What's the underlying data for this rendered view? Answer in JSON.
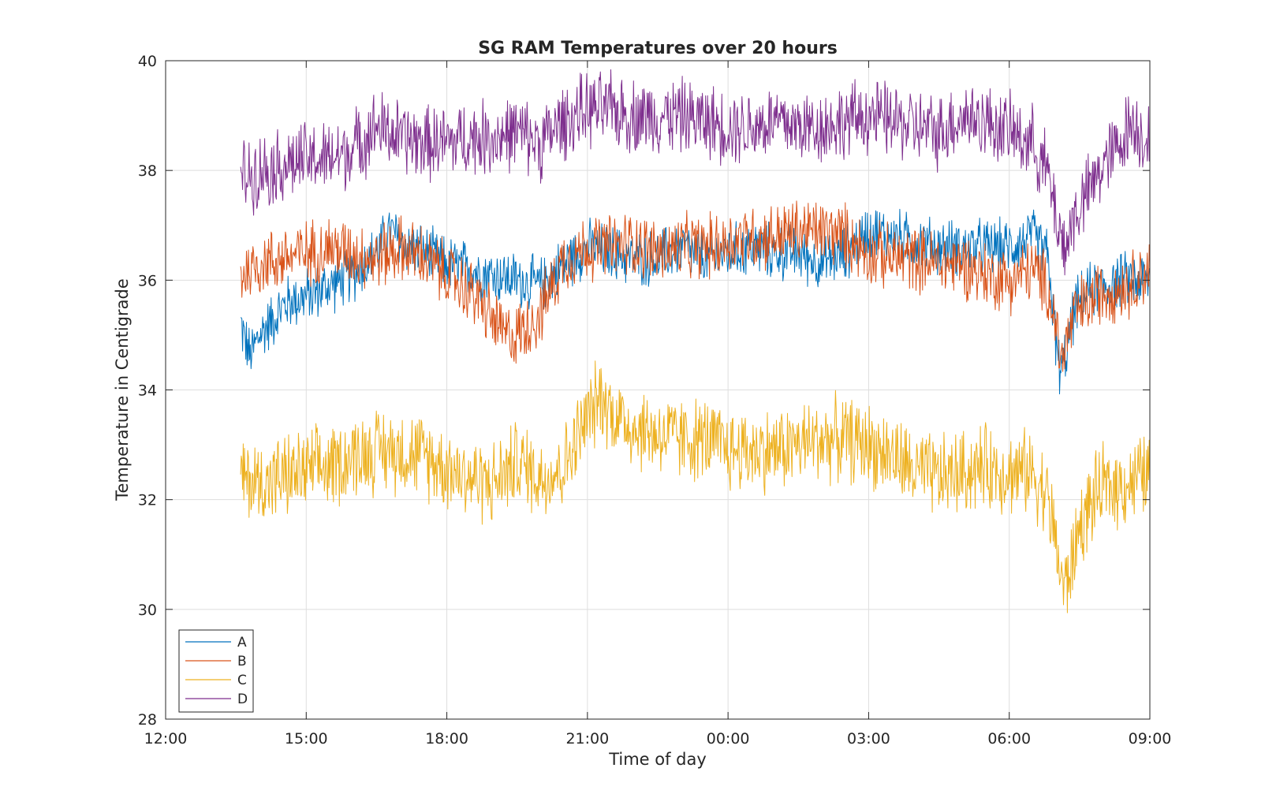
{
  "chart_data": {
    "type": "line",
    "title": "SG RAM Temperatures over 20 hours",
    "xlabel": "Time of day",
    "ylabel": "Temperature in Centigrade",
    "x_unit": "hours",
    "xlim": [
      12,
      33
    ],
    "ylim": [
      28,
      40
    ],
    "x_ticks": [
      12,
      15,
      18,
      21,
      24,
      27,
      30,
      33
    ],
    "x_tick_labels": [
      "12:00",
      "15:00",
      "18:00",
      "21:00",
      "00:00",
      "03:00",
      "06:00",
      "09:00"
    ],
    "y_ticks": [
      28,
      30,
      32,
      34,
      36,
      38,
      40
    ],
    "y_tick_labels": [
      "28",
      "30",
      "32",
      "34",
      "36",
      "38",
      "40"
    ],
    "grid": true,
    "legend_position": "bottom-left",
    "series": [
      {
        "name": "A",
        "color": "#0072BD",
        "noise": 0.6,
        "points": [
          [
            13.6,
            35.2
          ],
          [
            13.8,
            34.6
          ],
          [
            14.0,
            35.0
          ],
          [
            14.3,
            35.3
          ],
          [
            14.6,
            35.6
          ],
          [
            15.0,
            35.7
          ],
          [
            15.5,
            35.9
          ],
          [
            16.0,
            36.1
          ],
          [
            16.5,
            36.5
          ],
          [
            16.8,
            36.9
          ],
          [
            17.0,
            36.7
          ],
          [
            17.5,
            36.5
          ],
          [
            18.0,
            36.3
          ],
          [
            18.5,
            36.2
          ],
          [
            19.0,
            36.1
          ],
          [
            19.5,
            36.0
          ],
          [
            20.0,
            35.9
          ],
          [
            20.5,
            36.3
          ],
          [
            21.0,
            36.6
          ],
          [
            21.5,
            36.5
          ],
          [
            22.0,
            36.4
          ],
          [
            22.5,
            36.4
          ],
          [
            23.0,
            36.6
          ],
          [
            23.5,
            36.4
          ],
          [
            24.0,
            36.5
          ],
          [
            24.5,
            36.6
          ],
          [
            25.0,
            36.5
          ],
          [
            25.5,
            36.5
          ],
          [
            26.0,
            36.3
          ],
          [
            26.5,
            36.5
          ],
          [
            27.0,
            36.9
          ],
          [
            27.5,
            36.8
          ],
          [
            28.0,
            36.7
          ],
          [
            28.5,
            36.6
          ],
          [
            29.0,
            36.6
          ],
          [
            29.5,
            36.6
          ],
          [
            30.0,
            36.6
          ],
          [
            30.5,
            36.8
          ],
          [
            30.8,
            36.5
          ],
          [
            30.9,
            35.8
          ],
          [
            31.0,
            34.8
          ],
          [
            31.1,
            34.3
          ],
          [
            31.2,
            34.6
          ],
          [
            31.4,
            35.5
          ],
          [
            31.7,
            35.8
          ],
          [
            32.0,
            35.9
          ],
          [
            32.5,
            36.0
          ],
          [
            33.0,
            36.0
          ]
        ]
      },
      {
        "name": "B",
        "color": "#D95319",
        "noise": 0.7,
        "points": [
          [
            13.6,
            36.1
          ],
          [
            14.0,
            36.3
          ],
          [
            14.5,
            36.4
          ],
          [
            15.0,
            36.5
          ],
          [
            15.5,
            36.6
          ],
          [
            16.0,
            36.5
          ],
          [
            16.5,
            36.4
          ],
          [
            17.0,
            36.6
          ],
          [
            17.5,
            36.4
          ],
          [
            18.0,
            36.1
          ],
          [
            18.5,
            35.8
          ],
          [
            18.8,
            35.5
          ],
          [
            19.2,
            35.0
          ],
          [
            19.5,
            35.0
          ],
          [
            20.0,
            35.4
          ],
          [
            20.5,
            36.4
          ],
          [
            21.0,
            36.6
          ],
          [
            21.5,
            36.6
          ],
          [
            22.0,
            36.7
          ],
          [
            22.5,
            36.5
          ],
          [
            23.0,
            36.6
          ],
          [
            23.5,
            36.6
          ],
          [
            24.0,
            36.7
          ],
          [
            24.5,
            36.8
          ],
          [
            25.0,
            36.8
          ],
          [
            25.5,
            36.9
          ],
          [
            26.0,
            36.9
          ],
          [
            26.5,
            36.8
          ],
          [
            27.0,
            36.5
          ],
          [
            27.5,
            36.4
          ],
          [
            28.0,
            36.4
          ],
          [
            28.5,
            36.3
          ],
          [
            29.0,
            36.3
          ],
          [
            29.5,
            36.1
          ],
          [
            30.0,
            36.0
          ],
          [
            30.5,
            36.2
          ],
          [
            30.8,
            35.9
          ],
          [
            31.0,
            35.2
          ],
          [
            31.1,
            34.5
          ],
          [
            31.2,
            34.8
          ],
          [
            31.4,
            35.4
          ],
          [
            31.7,
            35.6
          ],
          [
            32.0,
            35.8
          ],
          [
            32.5,
            35.9
          ],
          [
            33.0,
            36.2
          ]
        ]
      },
      {
        "name": "C",
        "color": "#EDB120",
        "noise": 0.9,
        "points": [
          [
            13.6,
            32.4
          ],
          [
            14.0,
            32.3
          ],
          [
            14.5,
            32.4
          ],
          [
            15.0,
            32.5
          ],
          [
            15.5,
            32.6
          ],
          [
            16.0,
            32.8
          ],
          [
            16.5,
            32.9
          ],
          [
            17.0,
            32.9
          ],
          [
            17.5,
            32.8
          ],
          [
            18.0,
            32.6
          ],
          [
            18.5,
            32.4
          ],
          [
            19.0,
            32.3
          ],
          [
            19.5,
            32.7
          ],
          [
            20.0,
            32.4
          ],
          [
            20.5,
            32.6
          ],
          [
            21.0,
            33.5
          ],
          [
            21.3,
            33.9
          ],
          [
            21.5,
            33.6
          ],
          [
            22.0,
            33.3
          ],
          [
            22.5,
            33.2
          ],
          [
            23.0,
            33.1
          ],
          [
            23.5,
            33.1
          ],
          [
            24.0,
            32.9
          ],
          [
            24.5,
            32.9
          ],
          [
            25.0,
            32.9
          ],
          [
            25.5,
            33.0
          ],
          [
            26.0,
            33.1
          ],
          [
            26.5,
            33.1
          ],
          [
            27.0,
            33.0
          ],
          [
            27.5,
            32.8
          ],
          [
            28.0,
            32.5
          ],
          [
            28.5,
            32.4
          ],
          [
            29.0,
            32.5
          ],
          [
            29.5,
            32.6
          ],
          [
            30.0,
            32.5
          ],
          [
            30.5,
            32.5
          ],
          [
            30.8,
            32.1
          ],
          [
            31.0,
            31.2
          ],
          [
            31.1,
            30.6
          ],
          [
            31.2,
            30.4
          ],
          [
            31.3,
            30.7
          ],
          [
            31.5,
            31.5
          ],
          [
            31.8,
            32.0
          ],
          [
            32.0,
            32.2
          ],
          [
            32.5,
            32.3
          ],
          [
            33.0,
            32.5
          ]
        ]
      },
      {
        "name": "D",
        "color": "#7E2F8E",
        "noise": 0.8,
        "points": [
          [
            13.6,
            37.9
          ],
          [
            14.0,
            38.0
          ],
          [
            14.5,
            38.1
          ],
          [
            15.0,
            38.2
          ],
          [
            15.5,
            38.2
          ],
          [
            16.0,
            38.4
          ],
          [
            16.5,
            38.8
          ],
          [
            17.0,
            38.6
          ],
          [
            17.5,
            38.5
          ],
          [
            18.0,
            38.5
          ],
          [
            18.5,
            38.6
          ],
          [
            19.0,
            38.6
          ],
          [
            19.5,
            38.7
          ],
          [
            20.0,
            38.5
          ],
          [
            20.5,
            38.9
          ],
          [
            21.0,
            39.1
          ],
          [
            21.5,
            39.1
          ],
          [
            22.0,
            39.0
          ],
          [
            22.5,
            39.0
          ],
          [
            23.0,
            39.0
          ],
          [
            23.5,
            38.9
          ],
          [
            24.0,
            38.8
          ],
          [
            24.5,
            38.8
          ],
          [
            25.0,
            38.9
          ],
          [
            25.5,
            38.8
          ],
          [
            26.0,
            38.8
          ],
          [
            26.5,
            38.9
          ],
          [
            27.0,
            39.0
          ],
          [
            27.5,
            38.9
          ],
          [
            28.0,
            38.8
          ],
          [
            28.5,
            38.7
          ],
          [
            29.0,
            39.0
          ],
          [
            29.5,
            38.9
          ],
          [
            30.0,
            38.7
          ],
          [
            30.5,
            38.5
          ],
          [
            30.8,
            38.0
          ],
          [
            31.0,
            37.2
          ],
          [
            31.1,
            36.8
          ],
          [
            31.2,
            36.6
          ],
          [
            31.4,
            37.2
          ],
          [
            31.7,
            37.6
          ],
          [
            32.0,
            38.1
          ],
          [
            32.3,
            38.4
          ],
          [
            32.6,
            38.9
          ],
          [
            33.0,
            38.5
          ]
        ]
      }
    ]
  }
}
